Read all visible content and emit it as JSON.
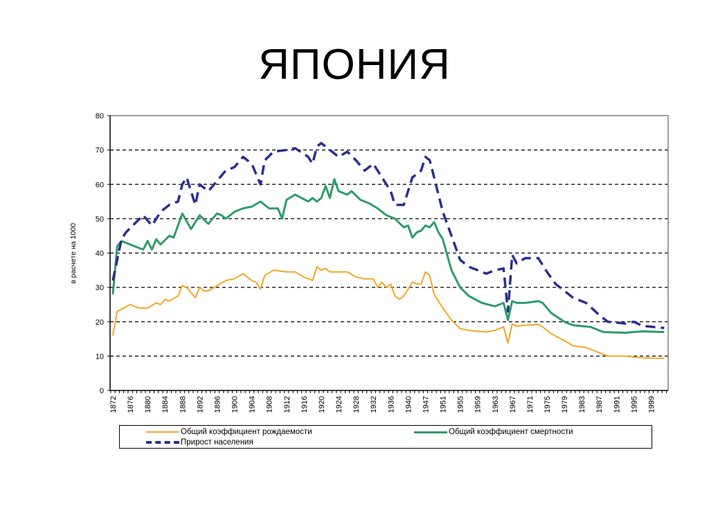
{
  "page": {
    "title": "ЯПОНИЯ"
  },
  "chart_data": {
    "type": "line",
    "title": "ЯПОНИЯ",
    "xlabel": "",
    "ylabel": "в расчете на 1000",
    "ylim": [
      0,
      80
    ],
    "yticks": [
      0,
      10,
      20,
      30,
      40,
      50,
      60,
      70,
      80
    ],
    "grid": "horizontal dashed",
    "legend_position": "bottom",
    "x_tick_labels": [
      "1872",
      "1876",
      "1880",
      "1884",
      "1888",
      "1892",
      "1896",
      "1900",
      "1904",
      "1908",
      "1912",
      "1916",
      "1920",
      "1924",
      "1928",
      "1932",
      "1936",
      "1940",
      "1947",
      "1951",
      "1955",
      "1959",
      "1963",
      "1967",
      "1971",
      "1975",
      "1979",
      "1983",
      "1987",
      "1991",
      "1995",
      "1999"
    ],
    "x_note": "Categories are years 1872–1943 and 1947–2002 (1944–1946 absent); values given as [year, value] key points",
    "series": [
      {
        "name": "Общий коэффициент рождаемости",
        "color": "#f5a623",
        "style": "solid",
        "width": 2,
        "points": [
          [
            1872,
            16
          ],
          [
            1873,
            23
          ],
          [
            1876,
            25
          ],
          [
            1878,
            24
          ],
          [
            1880,
            24
          ],
          [
            1882,
            25.5
          ],
          [
            1883,
            25
          ],
          [
            1884,
            26.5
          ],
          [
            1885,
            26
          ],
          [
            1887,
            27.5
          ],
          [
            1888,
            30.5
          ],
          [
            1889,
            30
          ],
          [
            1891,
            27
          ],
          [
            1892,
            30
          ],
          [
            1893,
            29
          ],
          [
            1894,
            29
          ],
          [
            1896,
            30.5
          ],
          [
            1898,
            32
          ],
          [
            1900,
            32.5
          ],
          [
            1902,
            34
          ],
          [
            1904,
            32
          ],
          [
            1905,
            31.5
          ],
          [
            1906,
            29.5
          ],
          [
            1907,
            33.5
          ],
          [
            1909,
            35
          ],
          [
            1912,
            34.5
          ],
          [
            1914,
            34.5
          ],
          [
            1916,
            33
          ],
          [
            1918,
            32
          ],
          [
            1919,
            36
          ],
          [
            1920,
            35
          ],
          [
            1921,
            35.5
          ],
          [
            1922,
            34.5
          ],
          [
            1924,
            34.5
          ],
          [
            1926,
            34.5
          ],
          [
            1928,
            33
          ],
          [
            1930,
            32.5
          ],
          [
            1932,
            32.5
          ],
          [
            1933,
            30
          ],
          [
            1934,
            31.5
          ],
          [
            1935,
            30
          ],
          [
            1936,
            31
          ],
          [
            1937,
            27.5
          ],
          [
            1938,
            26.5
          ],
          [
            1939,
            27.5
          ],
          [
            1941,
            31.5
          ],
          [
            1942,
            31
          ],
          [
            1943,
            31
          ],
          [
            1947,
            34.5
          ],
          [
            1948,
            33.5
          ],
          [
            1949,
            28
          ],
          [
            1951,
            24
          ],
          [
            1953,
            20.5
          ],
          [
            1955,
            18
          ],
          [
            1957,
            17.5
          ],
          [
            1961,
            17
          ],
          [
            1963,
            17.5
          ],
          [
            1965,
            18.5
          ],
          [
            1966,
            13.8
          ],
          [
            1967,
            19.3
          ],
          [
            1968,
            18.7
          ],
          [
            1970,
            19
          ],
          [
            1973,
            19.2
          ],
          [
            1974,
            18.5
          ],
          [
            1976,
            16.5
          ],
          [
            1979,
            14.5
          ],
          [
            1981,
            13
          ],
          [
            1984,
            12.5
          ],
          [
            1987,
            11
          ],
          [
            1989,
            10
          ],
          [
            1993,
            10
          ],
          [
            1997,
            9.5
          ],
          [
            2002,
            9.3
          ]
        ]
      },
      {
        "name": "Общий коэффициент смертности",
        "color": "#2e9b6a",
        "style": "solid",
        "width": 3,
        "points": [
          [
            1872,
            28
          ],
          [
            1873,
            42
          ],
          [
            1874,
            43.5
          ],
          [
            1877,
            42
          ],
          [
            1879,
            41
          ],
          [
            1880,
            43.5
          ],
          [
            1881,
            41
          ],
          [
            1882,
            44
          ],
          [
            1883,
            42.5
          ],
          [
            1885,
            45
          ],
          [
            1886,
            44.5
          ],
          [
            1888,
            51.5
          ],
          [
            1890,
            47
          ],
          [
            1892,
            51
          ],
          [
            1894,
            48.5
          ],
          [
            1896,
            51.5
          ],
          [
            1897,
            51
          ],
          [
            1898,
            50
          ],
          [
            1900,
            52
          ],
          [
            1902,
            53
          ],
          [
            1904,
            53.5
          ],
          [
            1906,
            55
          ],
          [
            1908,
            53
          ],
          [
            1910,
            53
          ],
          [
            1911,
            50
          ],
          [
            1912,
            55.5
          ],
          [
            1914,
            57
          ],
          [
            1917,
            55
          ],
          [
            1918,
            56
          ],
          [
            1919,
            55
          ],
          [
            1920,
            56
          ],
          [
            1921,
            59.5
          ],
          [
            1922,
            56
          ],
          [
            1923,
            61.5
          ],
          [
            1924,
            58
          ],
          [
            1926,
            57
          ],
          [
            1927,
            58
          ],
          [
            1929,
            55.5
          ],
          [
            1931,
            54.5
          ],
          [
            1933,
            53
          ],
          [
            1935,
            51
          ],
          [
            1937,
            50
          ],
          [
            1939,
            47.5
          ],
          [
            1940,
            48
          ],
          [
            1941,
            44.5
          ],
          [
            1942,
            46
          ],
          [
            1943,
            46.5
          ],
          [
            1947,
            48
          ],
          [
            1948,
            47.5
          ],
          [
            1949,
            49
          ],
          [
            1950,
            46
          ],
          [
            1951,
            44
          ],
          [
            1953,
            35
          ],
          [
            1955,
            30
          ],
          [
            1957,
            27.5
          ],
          [
            1960,
            25.5
          ],
          [
            1963,
            24.5
          ],
          [
            1965,
            25.5
          ],
          [
            1966,
            20.5
          ],
          [
            1967,
            26
          ],
          [
            1968,
            25.5
          ],
          [
            1970,
            25.5
          ],
          [
            1973,
            26
          ],
          [
            1974,
            25.5
          ],
          [
            1976,
            22.5
          ],
          [
            1979,
            20
          ],
          [
            1981,
            19
          ],
          [
            1985,
            18.5
          ],
          [
            1988,
            17
          ],
          [
            1993,
            16.8
          ],
          [
            1997,
            17.2
          ],
          [
            2002,
            17
          ]
        ]
      },
      {
        "name": "Прирост населения",
        "color": "#2b2f8c",
        "style": "dashed",
        "width": 3.5,
        "points": [
          [
            1872,
            32
          ],
          [
            1874,
            44
          ],
          [
            1875,
            46
          ],
          [
            1877,
            48.5
          ],
          [
            1879,
            51
          ],
          [
            1881,
            48
          ],
          [
            1883,
            52
          ],
          [
            1885,
            54
          ],
          [
            1887,
            55
          ],
          [
            1888,
            60
          ],
          [
            1889,
            62
          ],
          [
            1891,
            54
          ],
          [
            1892,
            60
          ],
          [
            1894,
            58
          ],
          [
            1896,
            61
          ],
          [
            1898,
            64
          ],
          [
            1900,
            65
          ],
          [
            1902,
            68
          ],
          [
            1904,
            66
          ],
          [
            1906,
            60
          ],
          [
            1907,
            67
          ],
          [
            1909,
            69.5
          ],
          [
            1912,
            70
          ],
          [
            1914,
            70.5
          ],
          [
            1917,
            68
          ],
          [
            1918,
            66
          ],
          [
            1919,
            71
          ],
          [
            1920,
            72
          ],
          [
            1922,
            70
          ],
          [
            1924,
            68
          ],
          [
            1926,
            69.5
          ],
          [
            1928,
            67
          ],
          [
            1930,
            64
          ],
          [
            1932,
            66
          ],
          [
            1934,
            62
          ],
          [
            1936,
            58
          ],
          [
            1937,
            54
          ],
          [
            1939,
            54
          ],
          [
            1941,
            62
          ],
          [
            1943,
            64
          ],
          [
            1947,
            68
          ],
          [
            1948,
            67
          ],
          [
            1949,
            62
          ],
          [
            1951,
            52
          ],
          [
            1953,
            45
          ],
          [
            1955,
            38
          ],
          [
            1957,
            36
          ],
          [
            1959,
            35
          ],
          [
            1961,
            34
          ],
          [
            1963,
            35
          ],
          [
            1965,
            35.5
          ],
          [
            1966,
            23
          ],
          [
            1967,
            39.5
          ],
          [
            1968,
            37
          ],
          [
            1970,
            38.5
          ],
          [
            1973,
            38.5
          ],
          [
            1975,
            34.5
          ],
          [
            1977,
            31
          ],
          [
            1979,
            29
          ],
          [
            1981,
            27
          ],
          [
            1984,
            25.5
          ],
          [
            1987,
            22
          ],
          [
            1989,
            20
          ],
          [
            1993,
            19.5
          ],
          [
            1995,
            20
          ],
          [
            1997,
            18.8
          ],
          [
            2002,
            18.2
          ]
        ]
      }
    ]
  },
  "legend": {
    "items": [
      {
        "label": "Общий коэффициент рождаемости",
        "color": "#f5a623"
      },
      {
        "label": "Общий коэффициент смертности",
        "color": "#2e9b6a"
      },
      {
        "label": "Прирост населения",
        "color": "#2b2f8c"
      }
    ]
  }
}
